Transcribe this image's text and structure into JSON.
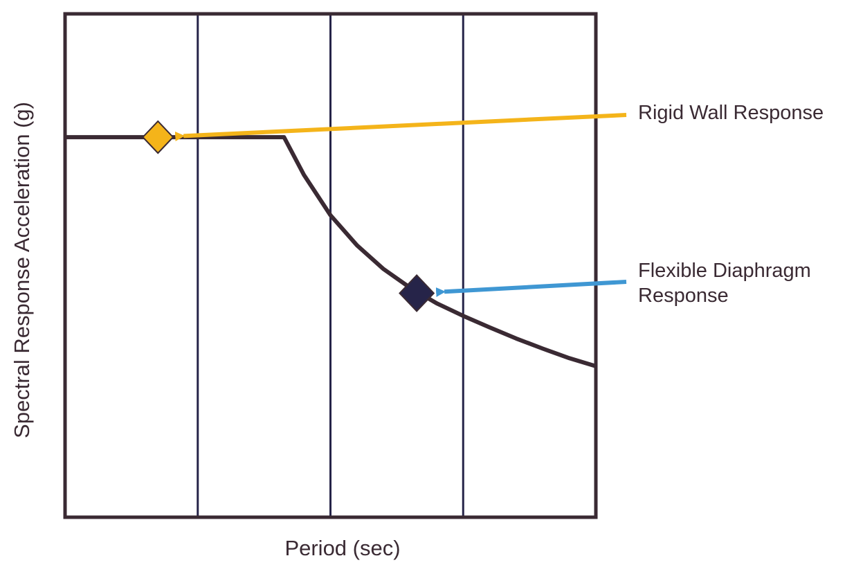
{
  "chart_data": {
    "type": "line",
    "title": "",
    "xlabel": "Period (sec)",
    "ylabel": "Spectral Response Acceleration (g)",
    "xlim": [
      0,
      4
    ],
    "ylim": [
      0,
      1
    ],
    "grid": {
      "x": true,
      "y": false
    },
    "xticks": [
      1,
      2,
      3
    ],
    "x_tick_labels_shown": false,
    "y_tick_labels_shown": false,
    "series": [
      {
        "name": "",
        "color": "#3a2a33",
        "x": [
          0,
          0.5,
          1.0,
          1.65,
          1.8,
          2.0,
          2.2,
          2.4,
          2.6,
          2.8,
          3.0,
          3.2,
          3.4,
          3.6,
          3.8,
          4.0
        ],
        "y": [
          0.755,
          0.755,
          0.755,
          0.755,
          0.68,
          0.6,
          0.54,
          0.493,
          0.456,
          0.425,
          0.4,
          0.377,
          0.355,
          0.335,
          0.316,
          0.3
        ]
      }
    ],
    "points": [
      {
        "label": "Rigid Wall Response",
        "x": 0.7,
        "y": 0.755,
        "marker": "diamond",
        "color": "#f4b41a",
        "arrow_color": "#f4b41a"
      },
      {
        "label": "Flexible Diaphragm Response",
        "label_lines": [
          "Flexible Diaphragm",
          "Response"
        ],
        "x": 2.65,
        "y": 0.445,
        "marker": "diamond",
        "color": "#262449",
        "arrow_color": "#3f97d3"
      }
    ]
  }
}
